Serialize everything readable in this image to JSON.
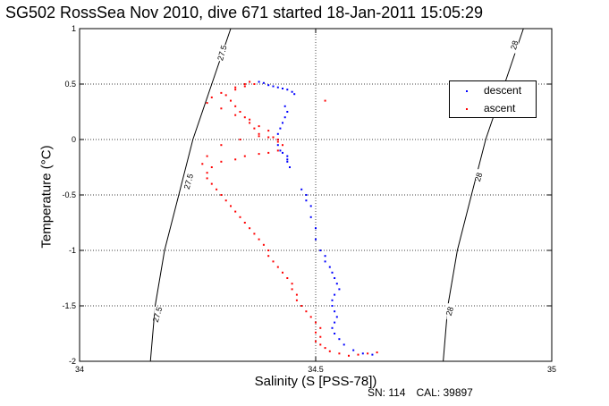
{
  "title": "SG502 RossSea Nov 2010, dive 671 started 18-Jan-2011 15:05:29",
  "footer": {
    "sn": "SN: 114",
    "cal": "CAL: 39897"
  },
  "colors": {
    "descent": "#0000ff",
    "ascent": "#ff0000",
    "axes": "#000000",
    "grid": "#000000"
  },
  "chart_data": {
    "type": "scatter",
    "title": "SG502 RossSea Nov 2010, dive 671 started 18-Jan-2011 15:05:29",
    "xlabel": "Salinity (S [PSS-78])",
    "ylabel": "Temperature (°C)",
    "xlim": [
      34,
      35
    ],
    "ylim": [
      -2,
      1
    ],
    "x_ticks": [
      34,
      34.5,
      35
    ],
    "x_tick_labels": [
      "34",
      "34.5",
      "35"
    ],
    "y_ticks": [
      -2,
      -1.5,
      -1,
      -0.5,
      0,
      0.5,
      1
    ],
    "y_tick_labels": [
      "-2",
      "-1.5",
      "-1",
      "-0.5",
      "0",
      "0.5",
      "1"
    ],
    "grid": true,
    "legend": {
      "placement": "top-right",
      "entries": [
        "descent",
        "ascent"
      ]
    },
    "isopycnals": [
      {
        "label": "27.5",
        "points": [
          [
            34.32,
            1.0
          ],
          [
            34.28,
            0.5
          ],
          [
            34.24,
            0.0
          ],
          [
            34.21,
            -0.5
          ],
          [
            34.18,
            -1.0
          ],
          [
            34.16,
            -1.5
          ],
          [
            34.15,
            -2.0
          ]
        ],
        "label_positions": [
          [
            34.303,
            0.78
          ],
          [
            34.232,
            -0.38
          ],
          [
            34.166,
            -1.58
          ]
        ]
      },
      {
        "label": "28",
        "points": [
          [
            34.94,
            1.0
          ],
          [
            34.9,
            0.5
          ],
          [
            34.86,
            0.0
          ],
          [
            34.83,
            -0.5
          ],
          [
            34.8,
            -1.0
          ],
          [
            34.78,
            -1.5
          ],
          [
            34.77,
            -2.0
          ]
        ],
        "label_positions": [
          [
            34.922,
            0.85
          ],
          [
            34.846,
            -0.34
          ],
          [
            34.785,
            -1.55
          ]
        ]
      }
    ],
    "series": [
      {
        "name": "descent",
        "points": [
          [
            34.38,
            0.52
          ],
          [
            34.39,
            0.51
          ],
          [
            34.4,
            0.49
          ],
          [
            34.41,
            0.48
          ],
          [
            34.42,
            0.47
          ],
          [
            34.43,
            0.46
          ],
          [
            34.44,
            0.45
          ],
          [
            34.45,
            0.43
          ],
          [
            34.455,
            0.41
          ],
          [
            34.435,
            0.3
          ],
          [
            34.44,
            0.25
          ],
          [
            34.435,
            0.2
          ],
          [
            34.43,
            0.15
          ],
          [
            34.425,
            0.1
          ],
          [
            34.42,
            0.05
          ],
          [
            34.42,
            0.0
          ],
          [
            34.42,
            -0.05
          ],
          [
            34.425,
            -0.1
          ],
          [
            34.43,
            -0.12
          ],
          [
            34.44,
            -0.15
          ],
          [
            34.44,
            -0.18
          ],
          [
            34.44,
            -0.2
          ],
          [
            34.445,
            -0.25
          ],
          [
            34.47,
            -0.45
          ],
          [
            34.48,
            -0.5
          ],
          [
            34.48,
            -0.55
          ],
          [
            34.49,
            -0.6
          ],
          [
            34.49,
            -0.7
          ],
          [
            34.5,
            -0.8
          ],
          [
            34.5,
            -0.9
          ],
          [
            34.51,
            -1.0
          ],
          [
            34.52,
            -1.05
          ],
          [
            34.52,
            -1.1
          ],
          [
            34.53,
            -1.15
          ],
          [
            34.535,
            -1.2
          ],
          [
            34.54,
            -1.25
          ],
          [
            34.545,
            -1.3
          ],
          [
            34.55,
            -1.35
          ],
          [
            34.54,
            -1.4
          ],
          [
            34.535,
            -1.45
          ],
          [
            34.535,
            -1.5
          ],
          [
            34.54,
            -1.55
          ],
          [
            34.545,
            -1.6
          ],
          [
            34.54,
            -1.65
          ],
          [
            34.535,
            -1.7
          ],
          [
            34.54,
            -1.75
          ],
          [
            34.55,
            -1.8
          ],
          [
            34.56,
            -1.85
          ],
          [
            34.58,
            -1.9
          ],
          [
            34.6,
            -1.93
          ],
          [
            34.62,
            -1.94
          ]
        ]
      },
      {
        "name": "ascent",
        "points": [
          [
            34.63,
            -1.92
          ],
          [
            34.61,
            -1.93
          ],
          [
            34.59,
            -1.94
          ],
          [
            34.57,
            -1.95
          ],
          [
            34.55,
            -1.93
          ],
          [
            34.53,
            -1.91
          ],
          [
            34.52,
            -1.88
          ],
          [
            34.51,
            -1.85
          ],
          [
            34.5,
            -1.82
          ],
          [
            34.51,
            -1.78
          ],
          [
            34.5,
            -1.74
          ],
          [
            34.51,
            -1.7
          ],
          [
            34.5,
            -1.65
          ],
          [
            34.49,
            -1.6
          ],
          [
            34.48,
            -1.55
          ],
          [
            34.47,
            -1.5
          ],
          [
            34.46,
            -1.45
          ],
          [
            34.46,
            -1.4
          ],
          [
            34.45,
            -1.35
          ],
          [
            34.45,
            -1.3
          ],
          [
            34.44,
            -1.25
          ],
          [
            34.43,
            -1.2
          ],
          [
            34.42,
            -1.15
          ],
          [
            34.41,
            -1.1
          ],
          [
            34.4,
            -1.05
          ],
          [
            34.4,
            -1.0
          ],
          [
            34.39,
            -0.95
          ],
          [
            34.38,
            -0.9
          ],
          [
            34.37,
            -0.85
          ],
          [
            34.36,
            -0.8
          ],
          [
            34.35,
            -0.75
          ],
          [
            34.34,
            -0.7
          ],
          [
            34.33,
            -0.65
          ],
          [
            34.32,
            -0.6
          ],
          [
            34.31,
            -0.55
          ],
          [
            34.3,
            -0.5
          ],
          [
            34.29,
            -0.45
          ],
          [
            34.28,
            -0.4
          ],
          [
            34.27,
            -0.35
          ],
          [
            34.27,
            -0.3
          ],
          [
            34.28,
            -0.25
          ],
          [
            34.3,
            -0.2
          ],
          [
            34.33,
            -0.18
          ],
          [
            34.35,
            -0.15
          ],
          [
            34.38,
            -0.13
          ],
          [
            34.4,
            -0.12
          ],
          [
            34.42,
            -0.1
          ],
          [
            34.43,
            -0.05
          ],
          [
            34.42,
            0.0
          ],
          [
            34.4,
            0.02
          ],
          [
            34.38,
            0.05
          ],
          [
            34.37,
            0.1
          ],
          [
            34.36,
            0.15
          ],
          [
            34.35,
            0.2
          ],
          [
            34.34,
            0.25
          ],
          [
            34.33,
            0.3
          ],
          [
            34.32,
            0.35
          ],
          [
            34.31,
            0.4
          ],
          [
            34.33,
            0.45
          ],
          [
            34.35,
            0.48
          ],
          [
            34.37,
            0.5
          ],
          [
            34.36,
            0.52
          ],
          [
            34.35,
            0.5
          ],
          [
            34.33,
            0.47
          ],
          [
            34.3,
            0.42
          ],
          [
            34.28,
            0.38
          ],
          [
            34.27,
            0.33
          ],
          [
            34.3,
            0.28
          ],
          [
            34.33,
            0.22
          ],
          [
            34.36,
            0.18
          ],
          [
            34.38,
            0.12
          ],
          [
            34.4,
            0.08
          ],
          [
            34.41,
            0.02
          ],
          [
            34.42,
            -0.02
          ],
          [
            34.38,
            0.03
          ],
          [
            34.34,
            0.0
          ],
          [
            34.3,
            -0.05
          ],
          [
            34.27,
            -0.15
          ],
          [
            34.26,
            -0.22
          ],
          [
            34.52,
            0.35
          ]
        ]
      }
    ]
  }
}
